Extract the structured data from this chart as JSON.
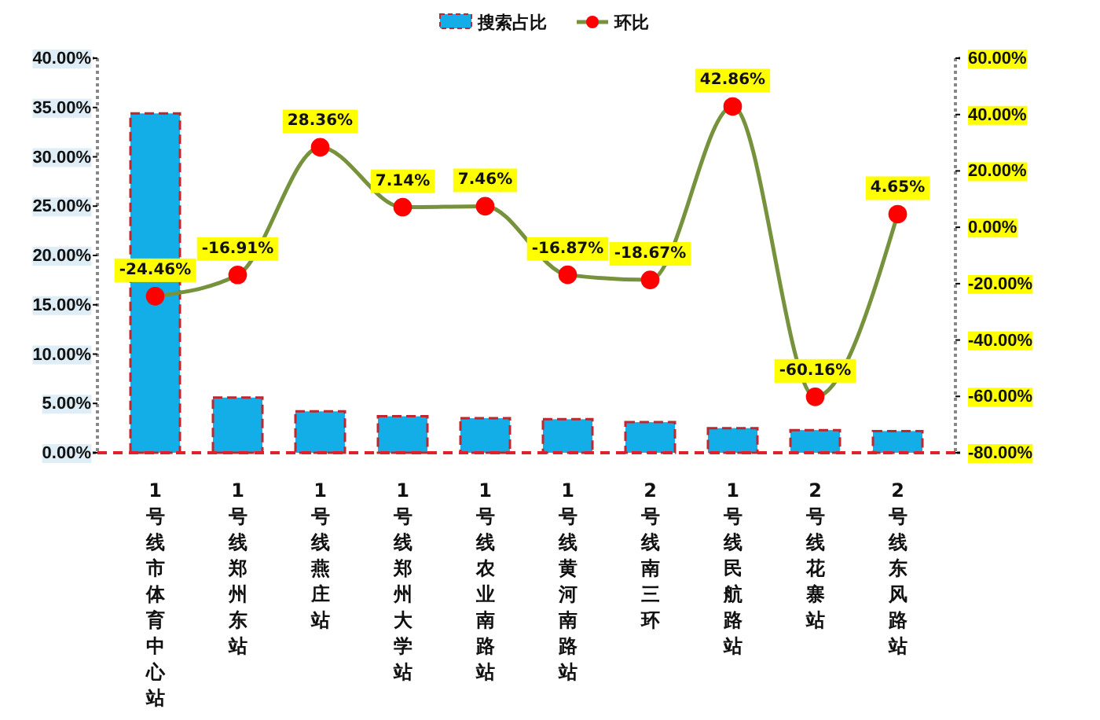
{
  "chart_data": {
    "type": "bar",
    "categories": [
      "1号线市体育中心站",
      "1号线郑州东站",
      "1号线燕庄站",
      "1号线郑州大学站",
      "1号线农业南路站",
      "1号线黄河南路站",
      "2号线南三环",
      "1号线民航路站",
      "2号线花寨站",
      "2号线东风路站"
    ],
    "series": [
      {
        "name": "搜索占比",
        "color": "#13aee8",
        "values": [
          34.4,
          5.6,
          4.2,
          3.7,
          3.5,
          3.4,
          3.1,
          2.5,
          2.3,
          2.2
        ]
      },
      {
        "name": "环比",
        "type": "line",
        "axis": "y2",
        "color": "#76923c",
        "marker": "circle",
        "line_style": "solid",
        "values": [
          -24.46,
          -16.91,
          28.36,
          7.14,
          7.46,
          -16.87,
          -18.67,
          42.86,
          -60.16,
          4.65
        ],
        "value_labels": [
          "-24.46%",
          "-16.91%",
          "28.36%",
          "7.14%",
          "7.46%",
          "-16.87%",
          "-18.67%",
          "42.86%",
          "-60.16%",
          "4.65%"
        ]
      }
    ],
    "ylim": [
      0,
      40
    ],
    "yticks": [
      {
        "value": 0,
        "label": "0.00%"
      },
      {
        "value": 5,
        "label": "5.00%"
      },
      {
        "value": 10,
        "label": "10.00%"
      },
      {
        "value": 15,
        "label": "15.00%"
      },
      {
        "value": 20,
        "label": "20.00%"
      },
      {
        "value": 25,
        "label": "25.00%"
      },
      {
        "value": 30,
        "label": "30.00%"
      },
      {
        "value": 35,
        "label": "35.00%"
      },
      {
        "value": 40,
        "label": "40.00%"
      }
    ],
    "y2lim": [
      -80,
      60
    ],
    "y2ticks": [
      {
        "value": -80,
        "label": "-80.00%"
      },
      {
        "value": -60,
        "label": "-60.00%"
      },
      {
        "value": -40,
        "label": "-40.00%"
      },
      {
        "value": -20,
        "label": "-20.00%"
      },
      {
        "value": 0,
        "label": "0.00%"
      },
      {
        "value": 20,
        "label": "20.00%"
      },
      {
        "value": 40,
        "label": "40.00%"
      },
      {
        "value": 60,
        "label": "60.00%"
      }
    ],
    "grid": false,
    "legend": "top"
  }
}
